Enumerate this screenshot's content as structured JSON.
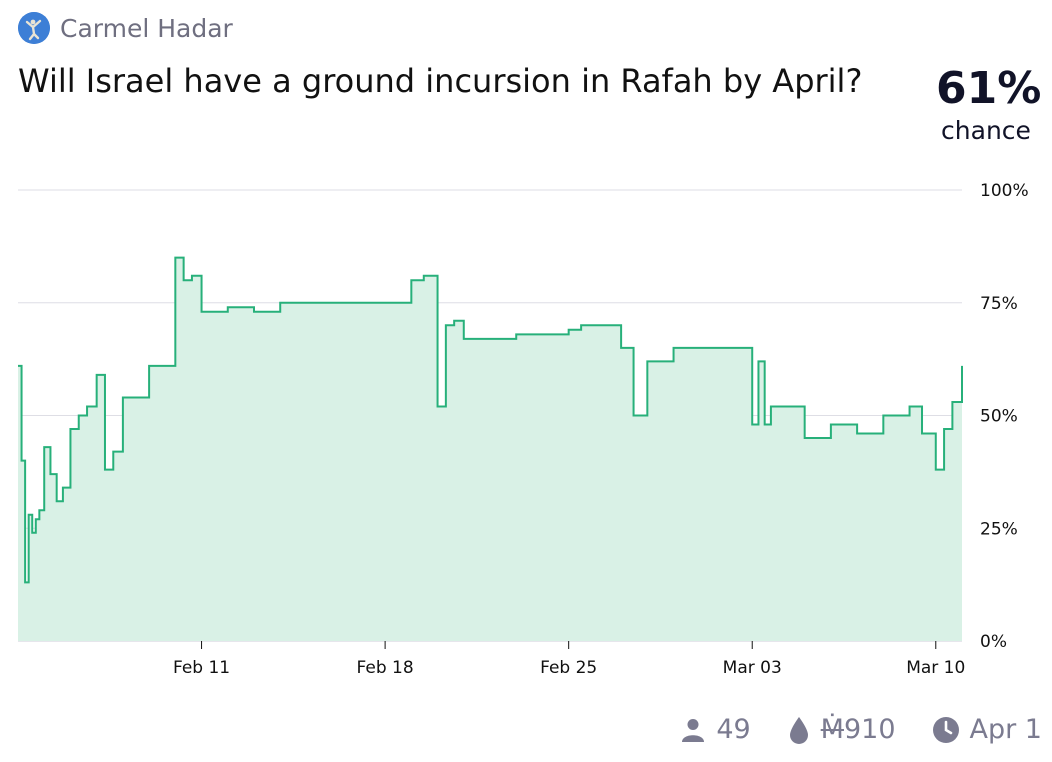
{
  "author": {
    "name": "Carmel Hadar"
  },
  "market": {
    "title": "Will Israel have a ground incursion in Rafah by April?",
    "probability": "61%",
    "probability_label": "chance"
  },
  "footer": {
    "traders": "49",
    "liquidity_symbol": "Ṁ",
    "liquidity_value": "910",
    "close_date": "Apr 1"
  },
  "colors": {
    "line": "#27b07a",
    "fill": "#d9f1e6",
    "grid": "#dedee5",
    "text_muted": "#7b7b90"
  },
  "icons": {
    "traders": "user-icon",
    "liquidity": "drop-icon",
    "close": "clock-icon"
  },
  "chart_data": {
    "type": "area",
    "x_type": "date",
    "xlim": [
      "2024-02-04",
      "2024-03-11"
    ],
    "ylim": [
      0,
      100
    ],
    "y_unit": "%",
    "y_ticks": [
      "100%",
      "75%",
      "50%",
      "25%",
      "0%"
    ],
    "y_tick_values": [
      100,
      75,
      50,
      25,
      0
    ],
    "x_ticks": [
      "Feb 11",
      "Feb 18",
      "Feb 25",
      "Mar 03",
      "Mar 10"
    ],
    "x_tick_dates": [
      "2024-02-11",
      "2024-02-18",
      "2024-02-25",
      "2024-03-03",
      "2024-03-10"
    ],
    "grid": true,
    "series": [
      {
        "points": [
          [
            "2024-02-04",
            61
          ],
          [
            "2024-02-04",
            40
          ],
          [
            "2024-02-04",
            13
          ],
          [
            "2024-02-04",
            28
          ],
          [
            "2024-02-04",
            24
          ],
          [
            "2024-02-04",
            27
          ],
          [
            "2024-02-04",
            29
          ],
          [
            "2024-02-05",
            43
          ],
          [
            "2024-02-05",
            37
          ],
          [
            "2024-02-05",
            31
          ],
          [
            "2024-02-05",
            34
          ],
          [
            "2024-02-06",
            47
          ],
          [
            "2024-02-06",
            50
          ],
          [
            "2024-02-06",
            52
          ],
          [
            "2024-02-07",
            59
          ],
          [
            "2024-02-07",
            38
          ],
          [
            "2024-02-07",
            42
          ],
          [
            "2024-02-08",
            54
          ],
          [
            "2024-02-09",
            61
          ],
          [
            "2024-02-10",
            85
          ],
          [
            "2024-02-10",
            80
          ],
          [
            "2024-02-10",
            81
          ],
          [
            "2024-02-11",
            73
          ],
          [
            "2024-02-12",
            74
          ],
          [
            "2024-02-13",
            73
          ],
          [
            "2024-02-14",
            75
          ],
          [
            "2024-02-16",
            75
          ],
          [
            "2024-02-19",
            80
          ],
          [
            "2024-02-19",
            81
          ],
          [
            "2024-02-20",
            52
          ],
          [
            "2024-02-20",
            70
          ],
          [
            "2024-02-20",
            71
          ],
          [
            "2024-02-21",
            67
          ],
          [
            "2024-02-23",
            68
          ],
          [
            "2024-02-25",
            69
          ],
          [
            "2024-02-25",
            70
          ],
          [
            "2024-02-27",
            65
          ],
          [
            "2024-02-27",
            50
          ],
          [
            "2024-02-28",
            62
          ],
          [
            "2024-02-29",
            65
          ],
          [
            "2024-03-03",
            48
          ],
          [
            "2024-03-03",
            62
          ],
          [
            "2024-03-03",
            48
          ],
          [
            "2024-03-03",
            52
          ],
          [
            "2024-03-05",
            45
          ],
          [
            "2024-03-06",
            48
          ],
          [
            "2024-03-07",
            46
          ],
          [
            "2024-03-08",
            50
          ],
          [
            "2024-03-09",
            52
          ],
          [
            "2024-03-09",
            46
          ],
          [
            "2024-03-10",
            38
          ],
          [
            "2024-03-10",
            47
          ],
          [
            "2024-03-10",
            53
          ],
          [
            "2024-03-11",
            59
          ],
          [
            "2024-03-11",
            61
          ]
        ]
      }
    ]
  }
}
